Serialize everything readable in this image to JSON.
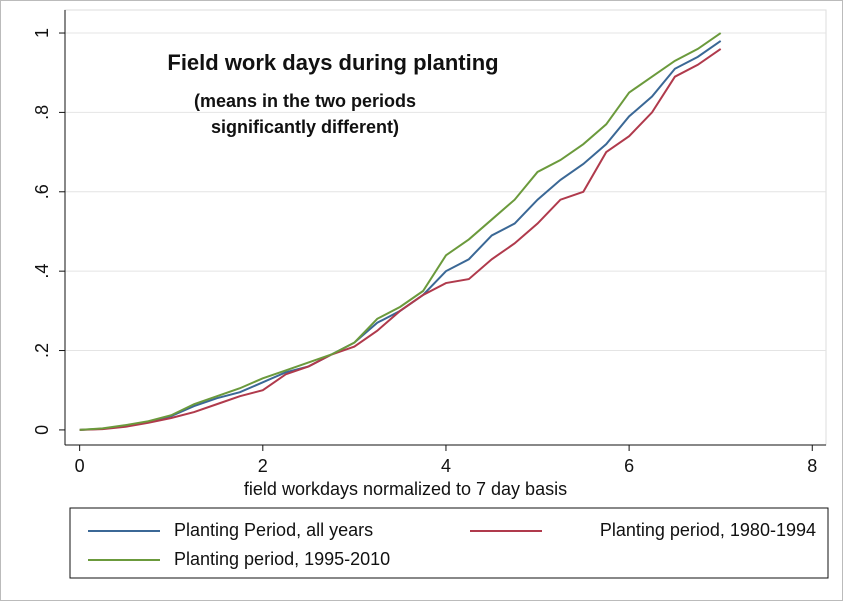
{
  "chart_data": {
    "type": "line",
    "annotations": [
      "Field work days during planting",
      "(means in the two periods",
      "significantly different)"
    ],
    "x_label": "field workdays normalized to 7 day basis",
    "x": [
      0,
      0.25,
      0.5,
      0.75,
      1,
      1.25,
      1.5,
      1.75,
      2,
      2.25,
      2.5,
      2.75,
      3,
      3.25,
      3.5,
      3.75,
      4,
      4.25,
      4.5,
      4.75,
      5,
      5.25,
      5.5,
      5.75,
      6,
      6.25,
      6.5,
      6.75,
      7
    ],
    "series": [
      {
        "name": "Planting Period, all years",
        "color": "#3b6896",
        "values": [
          0,
          0.003,
          0.01,
          0.02,
          0.035,
          0.06,
          0.08,
          0.095,
          0.12,
          0.145,
          0.16,
          0.19,
          0.22,
          0.27,
          0.3,
          0.34,
          0.4,
          0.43,
          0.49,
          0.52,
          0.58,
          0.63,
          0.67,
          0.72,
          0.79,
          0.84,
          0.91,
          0.94,
          0.98
        ]
      },
      {
        "name": "Planting period, 1980-1994",
        "color": "#b03a4c",
        "values": [
          0,
          0.002,
          0.008,
          0.018,
          0.03,
          0.045,
          0.065,
          0.085,
          0.1,
          0.14,
          0.16,
          0.19,
          0.21,
          0.25,
          0.3,
          0.34,
          0.37,
          0.38,
          0.43,
          0.47,
          0.52,
          0.58,
          0.6,
          0.7,
          0.74,
          0.8,
          0.89,
          0.92,
          0.96
        ]
      },
      {
        "name": "Planting period, 1995-2010",
        "color": "#6b9a3c",
        "values": [
          0,
          0.004,
          0.012,
          0.022,
          0.037,
          0.065,
          0.085,
          0.105,
          0.13,
          0.15,
          0.17,
          0.19,
          0.22,
          0.28,
          0.31,
          0.35,
          0.44,
          0.48,
          0.53,
          0.58,
          0.65,
          0.68,
          0.72,
          0.77,
          0.85,
          0.89,
          0.93,
          0.96,
          1.0
        ]
      }
    ],
    "xlim": [
      -0.16,
      8.15
    ],
    "xticks": [
      0,
      2,
      4,
      6,
      8
    ],
    "ylim": [
      -0.038,
      1.058
    ],
    "yticks": [
      0,
      {
        "value": 0.2,
        "label": ".2"
      },
      {
        "value": 0.4,
        "label": ".4"
      },
      {
        "value": 0.6,
        "label": ".6"
      },
      {
        "value": 0.8,
        "label": ".8"
      },
      1
    ],
    "grid": true,
    "legend": "bottom"
  }
}
